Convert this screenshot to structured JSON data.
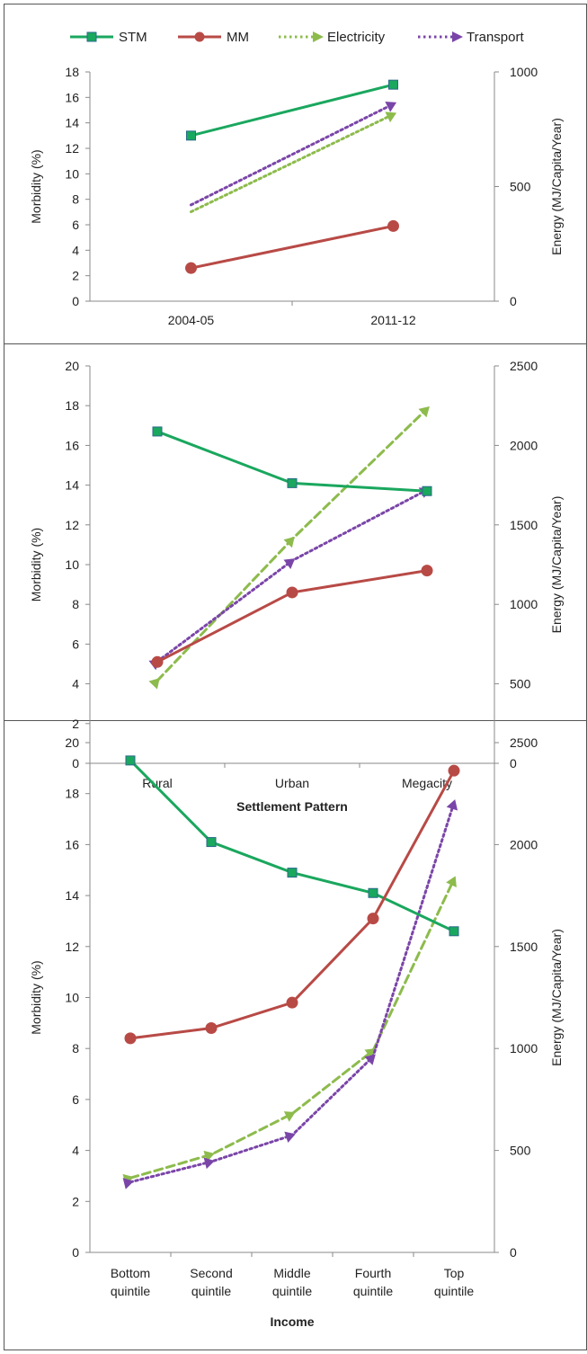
{
  "legend": [
    {
      "name": "STM",
      "color": "#1aa75e",
      "style": "solid",
      "marker": "square"
    },
    {
      "name": "MM",
      "color": "#b84a46",
      "style": "solid",
      "marker": "circle"
    },
    {
      "name": "Electricity",
      "color": "#8dbb4c",
      "style": "dotted",
      "marker": "triangle-right"
    },
    {
      "name": "Transport",
      "color": "#7a45a8",
      "style": "dotted",
      "marker": "triangle-right"
    }
  ],
  "chart_data": [
    {
      "type": "line",
      "xlabel": "",
      "ylabel": "Morbidity (%)",
      "y2label": "Energy (MJ/Capita/Year)",
      "categories": [
        "2004-05",
        "2011-12"
      ],
      "ylim": [
        0,
        18
      ],
      "yticks": [
        "0",
        "2",
        "4",
        "6",
        "8",
        "10",
        "12",
        "14",
        "16",
        "18"
      ],
      "y2lim": [
        0,
        1000
      ],
      "y2ticks": [
        "0",
        "500",
        "1000"
      ],
      "series": [
        {
          "name": "STM",
          "axis": "left",
          "values": [
            13.0,
            17.0
          ],
          "color": "#1aa75e",
          "dash": "none",
          "marker": "square"
        },
        {
          "name": "MM",
          "axis": "left",
          "values": [
            2.6,
            5.9
          ],
          "color": "#b84a46",
          "dash": "none",
          "marker": "circle"
        },
        {
          "name": "Electricity",
          "axis": "right",
          "values": [
            390,
            815
          ],
          "color": "#8dbb4c",
          "dash": "dot",
          "marker": "arrow"
        },
        {
          "name": "Transport",
          "axis": "right",
          "values": [
            420,
            860
          ],
          "color": "#7a45a8",
          "dash": "dot",
          "marker": "arrow"
        }
      ]
    },
    {
      "type": "line",
      "xlabel": "Settlement Pattern",
      "ylabel": "Morbidity (%)",
      "y2label": "Energy (MJ/Capita/Year)",
      "categories": [
        "Rural",
        "Urban",
        "Megacity"
      ],
      "ylim": [
        0,
        20
      ],
      "yticks": [
        "0",
        "2",
        "4",
        "6",
        "8",
        "10",
        "12",
        "14",
        "16",
        "18",
        "20"
      ],
      "y2lim": [
        0,
        2500
      ],
      "y2ticks": [
        "0",
        "500",
        "1000",
        "1500",
        "2000",
        "2500"
      ],
      "series": [
        {
          "name": "STM",
          "axis": "left",
          "values": [
            16.7,
            14.1,
            13.7
          ],
          "color": "#1aa75e",
          "dash": "none",
          "marker": "square"
        },
        {
          "name": "MM",
          "axis": "left",
          "values": [
            5.1,
            8.6,
            9.7
          ],
          "color": "#b84a46",
          "dash": "none",
          "marker": "circle"
        },
        {
          "name": "Electricity",
          "axis": "right",
          "values": [
            520,
            1410,
            2230
          ],
          "color": "#8dbb4c",
          "dash": "dash",
          "marker": "arrow"
        },
        {
          "name": "Transport",
          "axis": "right",
          "values": [
            640,
            1275,
            1720
          ],
          "color": "#7a45a8",
          "dash": "dot",
          "marker": "arrow"
        }
      ]
    },
    {
      "type": "line",
      "xlabel": "Income",
      "ylabel": "Morbidity (%)",
      "y2label": "Energy (MJ/Capita/Year)",
      "categories": [
        "Bottom quintile",
        "Second quintile",
        "Middle quintile",
        "Fourth quintile",
        "Top quintile"
      ],
      "ylim": [
        0,
        20
      ],
      "yticks": [
        "0",
        "2",
        "4",
        "6",
        "8",
        "10",
        "12",
        "14",
        "16",
        "18",
        "20"
      ],
      "y2lim": [
        0,
        2500
      ],
      "y2ticks": [
        "0",
        "500",
        "1000",
        "1500",
        "2000",
        "2500"
      ],
      "series": [
        {
          "name": "STM",
          "axis": "left",
          "values": [
            19.3,
            16.1,
            14.9,
            14.1,
            12.6
          ],
          "color": "#1aa75e",
          "dash": "none",
          "marker": "square"
        },
        {
          "name": "MM",
          "axis": "left",
          "values": [
            8.4,
            8.8,
            9.8,
            13.1,
            18.9
          ],
          "color": "#b84a46",
          "dash": "none",
          "marker": "circle"
        },
        {
          "name": "Electricity",
          "axis": "right",
          "values": [
            365,
            480,
            680,
            990,
            1830
          ],
          "color": "#8dbb4c",
          "dash": "dash",
          "marker": "arrow"
        },
        {
          "name": "Transport",
          "axis": "right",
          "values": [
            345,
            445,
            575,
            960,
            2205
          ],
          "color": "#7a45a8",
          "dash": "dot",
          "marker": "arrow"
        }
      ]
    }
  ]
}
